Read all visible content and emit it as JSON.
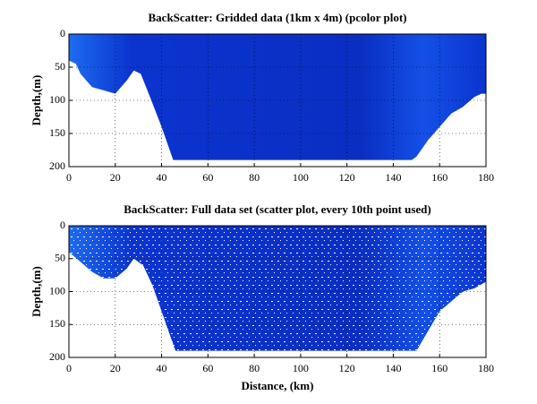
{
  "chart_data": [
    {
      "type": "area",
      "title": "BackScatter: Gridded data (1km x 4m) (pcolor plot)",
      "ylabel": "Depth,(m)",
      "x": [
        0,
        3,
        5,
        10,
        15,
        20,
        25,
        28,
        31,
        35,
        40,
        45,
        50,
        60,
        80,
        100,
        120,
        140,
        148,
        150,
        155,
        160,
        165,
        170,
        175,
        178,
        180
      ],
      "values": [
        40,
        45,
        60,
        80,
        85,
        90,
        70,
        55,
        60,
        95,
        140,
        190,
        190,
        190,
        190,
        190,
        190,
        190,
        190,
        185,
        160,
        140,
        120,
        110,
        95,
        90,
        90
      ],
      "color": "#0b34cf",
      "xlim": [
        0,
        180
      ],
      "xticks": [
        0,
        20,
        40,
        60,
        80,
        100,
        120,
        140,
        160,
        180
      ],
      "ylim": [
        0,
        200
      ],
      "yticks": [
        0,
        50,
        100,
        150,
        200
      ],
      "y_inverted": true,
      "grid": true
    },
    {
      "type": "scatter-area",
      "title": "BackScatter: Full data set (scatter plot, every 10th point used)",
      "ylabel": "Depth,(m)",
      "xlabel": "Distance, (km)",
      "x": [
        0,
        5,
        10,
        15,
        20,
        25,
        28,
        32,
        36,
        40,
        44,
        46,
        60,
        80,
        100,
        120,
        140,
        150,
        155,
        160,
        165,
        170,
        175,
        180
      ],
      "values": [
        40,
        55,
        70,
        80,
        80,
        65,
        50,
        60,
        90,
        130,
        170,
        190,
        190,
        190,
        190,
        190,
        190,
        190,
        160,
        130,
        115,
        100,
        95,
        85
      ],
      "color": "#0b34cf",
      "xlim": [
        0,
        180
      ],
      "xticks": [
        0,
        20,
        40,
        60,
        80,
        100,
        120,
        140,
        160,
        180
      ],
      "ylim": [
        0,
        200
      ],
      "yticks": [
        0,
        50,
        100,
        150,
        200
      ],
      "y_inverted": true,
      "grid": true
    }
  ]
}
